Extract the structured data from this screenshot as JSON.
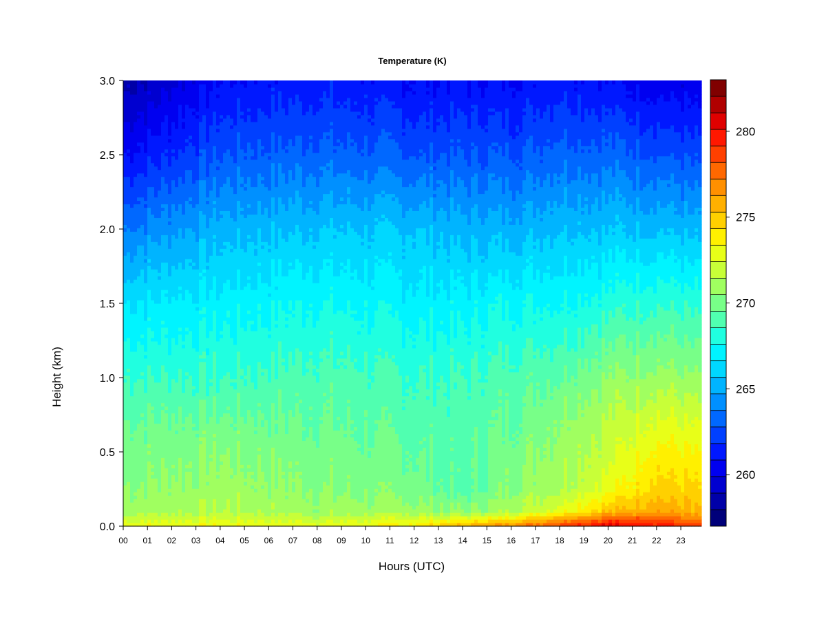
{
  "chart_data": {
    "type": "heatmap",
    "title": "Temperature (K)",
    "xlabel": "Hours (UTC)",
    "ylabel": "Height (km)",
    "x_ticks": [
      "00",
      "01",
      "02",
      "03",
      "04",
      "05",
      "06",
      "07",
      "08",
      "09",
      "10",
      "11",
      "12",
      "13",
      "14",
      "15",
      "16",
      "17",
      "18",
      "19",
      "20",
      "21",
      "22",
      "23"
    ],
    "y_ticks": [
      "0.0",
      "0.5",
      "1.0",
      "1.5",
      "2.0",
      "2.5",
      "3.0"
    ],
    "xlim": [
      0,
      23.85
    ],
    "ylim": [
      0.0,
      3.0
    ],
    "colorbar": {
      "range": [
        257,
        283
      ],
      "step": 1,
      "ticks": [
        "260",
        "265",
        "270",
        "275",
        "280"
      ],
      "colors": [
        "#00007a",
        "#0000a8",
        "#0000d0",
        "#0000f0",
        "#0018ff",
        "#0040ff",
        "#0068ff",
        "#0090ff",
        "#00b4ff",
        "#00d8ff",
        "#00f4ff",
        "#20ffe0",
        "#50ffb0",
        "#78ff88",
        "#a0ff60",
        "#c8ff38",
        "#e8ff18",
        "#fff000",
        "#ffd000",
        "#ffb000",
        "#ff9000",
        "#ff6800",
        "#ff4000",
        "#ff1800",
        "#e00000",
        "#b00000",
        "#800000"
      ]
    },
    "profile_at_hours": [
      0,
      4,
      8,
      12,
      14,
      16,
      18,
      20,
      22,
      23.85
    ],
    "profile_heights_km": [
      0.0,
      0.05,
      0.1,
      0.25,
      0.5,
      0.75,
      1.0,
      1.5,
      2.0,
      2.5,
      3.0
    ],
    "temperature_K": [
      [
        274.0,
        272.5,
        271.5,
        271.0,
        270.5,
        270.0,
        269.0,
        267.0,
        264.0,
        261.0,
        258.5
      ],
      [
        274.0,
        273.0,
        272.0,
        271.5,
        271.0,
        270.0,
        269.0,
        267.5,
        265.5,
        263.0,
        261.0
      ],
      [
        273.5,
        272.5,
        271.5,
        271.0,
        270.5,
        270.0,
        269.5,
        268.0,
        266.0,
        263.5,
        261.5
      ],
      [
        274.5,
        273.0,
        271.5,
        270.5,
        270.0,
        269.5,
        269.0,
        267.5,
        266.0,
        263.0,
        261.0
      ],
      [
        276.5,
        273.5,
        271.0,
        269.5,
        269.5,
        269.5,
        269.0,
        267.5,
        265.5,
        263.0,
        261.0
      ],
      [
        278.0,
        274.5,
        272.0,
        271.0,
        270.5,
        270.0,
        269.5,
        268.0,
        265.5,
        263.0,
        261.0
      ],
      [
        280.0,
        277.0,
        273.5,
        272.0,
        271.5,
        271.0,
        270.0,
        268.0,
        266.0,
        263.5,
        261.5
      ],
      [
        281.5,
        279.0,
        276.0,
        273.5,
        272.5,
        272.0,
        271.0,
        268.5,
        266.0,
        263.5,
        261.0
      ],
      [
        281.0,
        279.0,
        277.0,
        275.5,
        274.5,
        273.0,
        271.5,
        269.0,
        266.0,
        263.0,
        260.5
      ],
      [
        279.0,
        277.5,
        276.0,
        275.0,
        274.0,
        272.5,
        271.0,
        268.5,
        265.5,
        262.5,
        260.0
      ]
    ]
  }
}
